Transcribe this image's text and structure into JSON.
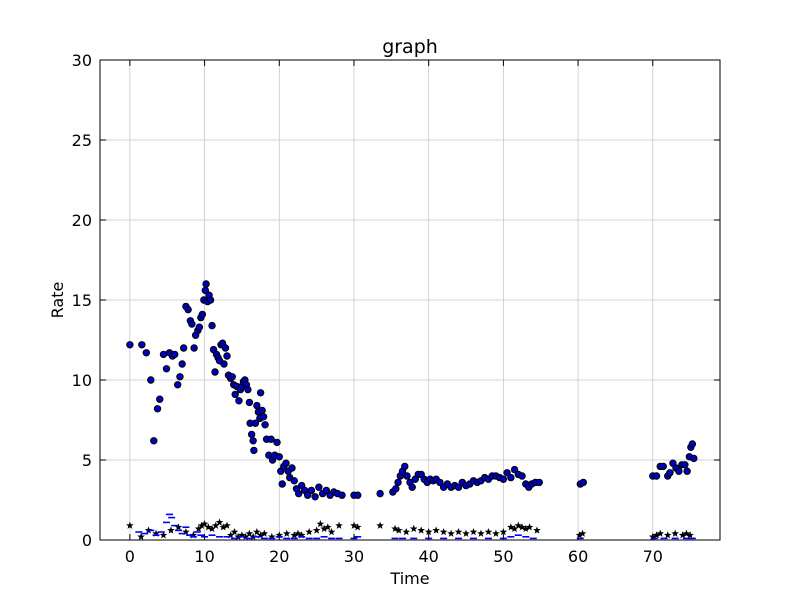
{
  "chart_data": {
    "type": "scatter",
    "title": "graph",
    "xlabel": "Time",
    "ylabel": "Rate",
    "xlim": [
      -4,
      79
    ],
    "ylim": [
      0,
      30
    ],
    "xticks": [
      0,
      10,
      20,
      30,
      40,
      50,
      60,
      70
    ],
    "yticks": [
      0,
      5,
      10,
      15,
      20,
      25,
      30
    ],
    "grid": true,
    "colors": {
      "circle_fill": "#0000bf",
      "circle_stroke": "#000000",
      "star": "#000000",
      "dash": "#0000ff",
      "grid": "#c8c8c8"
    },
    "series": [
      {
        "marker": "circle",
        "points": [
          [
            0,
            12.2
          ],
          [
            1.6,
            12.2
          ],
          [
            2.2,
            11.7
          ],
          [
            2.8,
            10
          ],
          [
            3.2,
            6.2
          ],
          [
            3.7,
            8.2
          ],
          [
            4,
            8.8
          ],
          [
            4.5,
            11.6
          ],
          [
            4.9,
            10.7
          ],
          [
            5.3,
            11.7
          ],
          [
            5.7,
            11.5
          ],
          [
            6,
            11.6
          ],
          [
            6.4,
            9.7
          ],
          [
            6.7,
            10.2
          ],
          [
            7,
            11
          ],
          [
            7.2,
            12
          ],
          [
            7.5,
            14.6
          ],
          [
            7.8,
            14.4
          ],
          [
            8.1,
            13.7
          ],
          [
            8.3,
            13.5
          ],
          [
            8.6,
            12
          ],
          [
            8.8,
            12.8
          ],
          [
            9.1,
            13.1
          ],
          [
            9.3,
            13.3
          ],
          [
            9.5,
            13.9
          ],
          [
            9.7,
            14.1
          ],
          [
            9.9,
            15
          ],
          [
            10.1,
            15.6
          ],
          [
            10.2,
            16
          ],
          [
            10.4,
            14.9
          ],
          [
            10.6,
            15.3
          ],
          [
            10.8,
            15
          ],
          [
            11,
            13.4
          ],
          [
            11.2,
            11.9
          ],
          [
            11.4,
            10.5
          ],
          [
            11.6,
            11.6
          ],
          [
            11.8,
            11.4
          ],
          [
            12,
            11.2
          ],
          [
            12.2,
            12.2
          ],
          [
            12.4,
            12.3
          ],
          [
            12.6,
            11
          ],
          [
            12.8,
            12
          ],
          [
            13,
            11.5
          ],
          [
            13.2,
            10.3
          ],
          [
            13.5,
            10.1
          ],
          [
            13.7,
            10.2
          ],
          [
            13.9,
            9.7
          ],
          [
            14.1,
            9.1
          ],
          [
            14.3,
            9.6
          ],
          [
            14.6,
            8.7
          ],
          [
            14.8,
            9.4
          ],
          [
            15,
            9.6
          ],
          [
            15.2,
            9.9
          ],
          [
            15.4,
            10
          ],
          [
            15.6,
            9.7
          ],
          [
            15.8,
            9.4
          ],
          [
            16,
            8.6
          ],
          [
            16.1,
            7.3
          ],
          [
            16.3,
            6.6
          ],
          [
            16.5,
            6.2
          ],
          [
            16.6,
            5.6
          ],
          [
            16.8,
            7.3
          ],
          [
            17,
            8.4
          ],
          [
            17.2,
            8
          ],
          [
            17.4,
            7.6
          ],
          [
            17.5,
            9.2
          ],
          [
            17.7,
            8.1
          ],
          [
            17.9,
            7.7
          ],
          [
            18.1,
            7.2
          ],
          [
            18.3,
            6.3
          ],
          [
            18.6,
            5.3
          ],
          [
            18.9,
            6.3
          ],
          [
            19.1,
            5
          ],
          [
            19.4,
            5.3
          ],
          [
            19.7,
            6.1
          ],
          [
            20,
            5.2
          ],
          [
            20.2,
            4.3
          ],
          [
            20.4,
            3.5
          ],
          [
            20.6,
            4.6
          ],
          [
            20.9,
            4.8
          ],
          [
            21.2,
            4.3
          ],
          [
            21.4,
            3.9
          ],
          [
            21.7,
            4.5
          ],
          [
            22,
            3.7
          ],
          [
            22.3,
            3.2
          ],
          [
            22.6,
            2.9
          ],
          [
            23,
            3.4
          ],
          [
            23.4,
            3.1
          ],
          [
            23.8,
            2.8
          ],
          [
            24.3,
            3.1
          ],
          [
            24.8,
            2.7
          ],
          [
            25.3,
            3.3
          ],
          [
            25.8,
            2.9
          ],
          [
            26.3,
            3.1
          ],
          [
            26.8,
            2.8
          ],
          [
            27.3,
            3
          ],
          [
            27.8,
            2.9
          ],
          [
            28.4,
            2.8
          ],
          [
            30,
            2.8
          ],
          [
            30.5,
            2.8
          ],
          [
            33.5,
            2.9
          ],
          [
            35.2,
            3
          ],
          [
            35.6,
            3.2
          ],
          [
            35.9,
            3.6
          ],
          [
            36.2,
            4
          ],
          [
            36.5,
            4.3
          ],
          [
            36.8,
            4.6
          ],
          [
            37.1,
            4
          ],
          [
            37.5,
            3.6
          ],
          [
            37.8,
            3.3
          ],
          [
            38.2,
            3.8
          ],
          [
            38.6,
            4.1
          ],
          [
            39,
            4.1
          ],
          [
            39.4,
            3.8
          ],
          [
            39.8,
            3.6
          ],
          [
            40.2,
            3.8
          ],
          [
            40.6,
            3.7
          ],
          [
            41,
            3.8
          ],
          [
            41.5,
            3.6
          ],
          [
            42,
            3.3
          ],
          [
            42.5,
            3.5
          ],
          [
            43,
            3.3
          ],
          [
            43.5,
            3.4
          ],
          [
            44,
            3.3
          ],
          [
            44.5,
            3.6
          ],
          [
            45,
            3.4
          ],
          [
            45.5,
            3.5
          ],
          [
            46,
            3.7
          ],
          [
            46.5,
            3.6
          ],
          [
            47,
            3.7
          ],
          [
            47.5,
            3.9
          ],
          [
            48,
            3.8
          ],
          [
            48.5,
            4
          ],
          [
            49,
            4
          ],
          [
            49.5,
            3.9
          ],
          [
            50,
            3.8
          ],
          [
            50.5,
            4.2
          ],
          [
            51,
            3.9
          ],
          [
            51.5,
            4.4
          ],
          [
            52,
            4.1
          ],
          [
            52.5,
            4
          ],
          [
            53,
            3.5
          ],
          [
            53.4,
            3.3
          ],
          [
            53.8,
            3.5
          ],
          [
            54.3,
            3.6
          ],
          [
            54.8,
            3.6
          ],
          [
            60.3,
            3.5
          ],
          [
            60.7,
            3.6
          ],
          [
            70,
            4
          ],
          [
            70.5,
            4
          ],
          [
            71,
            4.6
          ],
          [
            71.4,
            4.6
          ],
          [
            72,
            4
          ],
          [
            72.3,
            4.2
          ],
          [
            72.7,
            4.8
          ],
          [
            73.1,
            4.5
          ],
          [
            73.5,
            4.3
          ],
          [
            73.9,
            4.7
          ],
          [
            74.3,
            4.7
          ],
          [
            74.6,
            4.3
          ],
          [
            74.9,
            5.2
          ],
          [
            75.1,
            5.8
          ],
          [
            75.3,
            6
          ],
          [
            75.5,
            5.1
          ]
        ]
      },
      {
        "marker": "star",
        "points": [
          [
            0,
            0.9
          ],
          [
            1.5,
            0.2
          ],
          [
            2.5,
            0.6
          ],
          [
            3.5,
            0.4
          ],
          [
            4.5,
            0.3
          ],
          [
            5.5,
            0.6
          ],
          [
            6.5,
            0.8
          ],
          [
            7.5,
            0.5
          ],
          [
            8.5,
            0.3
          ],
          [
            9.2,
            0.7
          ],
          [
            9.6,
            0.9
          ],
          [
            10,
            1
          ],
          [
            10.5,
            0.8
          ],
          [
            11,
            0.7
          ],
          [
            11.5,
            0.9
          ],
          [
            12,
            1.1
          ],
          [
            12.5,
            0.8
          ],
          [
            13,
            0.9
          ],
          [
            13.5,
            0.3
          ],
          [
            14,
            0.5
          ],
          [
            14.5,
            0.2
          ],
          [
            15,
            0.3
          ],
          [
            15.5,
            0.2
          ],
          [
            16,
            0.4
          ],
          [
            16.5,
            0.2
          ],
          [
            17,
            0.5
          ],
          [
            17.5,
            0.3
          ],
          [
            18,
            0.4
          ],
          [
            19,
            0.2
          ],
          [
            20,
            0.3
          ],
          [
            21,
            0.4
          ],
          [
            22,
            0.3
          ],
          [
            22.5,
            0.4
          ],
          [
            23,
            0.3
          ],
          [
            24,
            0.5
          ],
          [
            25,
            0.6
          ],
          [
            25.5,
            1
          ],
          [
            26,
            0.7
          ],
          [
            26.5,
            0.8
          ],
          [
            27,
            0.5
          ],
          [
            28,
            0.9
          ],
          [
            30,
            0.9
          ],
          [
            30.5,
            0.8
          ],
          [
            33.5,
            0.9
          ],
          [
            35.5,
            0.7
          ],
          [
            36,
            0.6
          ],
          [
            37,
            0.5
          ],
          [
            38,
            0.7
          ],
          [
            39,
            0.6
          ],
          [
            40,
            0.5
          ],
          [
            41,
            0.6
          ],
          [
            42,
            0.5
          ],
          [
            43,
            0.4
          ],
          [
            44,
            0.5
          ],
          [
            45,
            0.4
          ],
          [
            46,
            0.5
          ],
          [
            47,
            0.4
          ],
          [
            48,
            0.5
          ],
          [
            49,
            0.4
          ],
          [
            50,
            0.5
          ],
          [
            51,
            0.8
          ],
          [
            51.5,
            0.7
          ],
          [
            52,
            0.9
          ],
          [
            52.5,
            0.8
          ],
          [
            53,
            0.7
          ],
          [
            53.5,
            0.8
          ],
          [
            54.5,
            0.6
          ],
          [
            60.2,
            0.3
          ],
          [
            60.6,
            0.4
          ],
          [
            70,
            0.2
          ],
          [
            70.5,
            0.3
          ],
          [
            71,
            0.4
          ],
          [
            72,
            0.3
          ],
          [
            73,
            0.4
          ],
          [
            74,
            0.3
          ],
          [
            74.5,
            0.4
          ],
          [
            75,
            0.3
          ]
        ]
      },
      {
        "marker": "dash",
        "points": [
          [
            1.2,
            0.5
          ],
          [
            2,
            0.4
          ],
          [
            2.8,
            0.6
          ],
          [
            3.5,
            0.3
          ],
          [
            4.2,
            0.5
          ],
          [
            4.9,
            1.1
          ],
          [
            5.3,
            1.6
          ],
          [
            5.6,
            1.4
          ],
          [
            6,
            0.9
          ],
          [
            6.5,
            0.6
          ],
          [
            7,
            0.4
          ],
          [
            7.5,
            0.8
          ],
          [
            8,
            0.3
          ],
          [
            8.5,
            0.2
          ],
          [
            9,
            0.5
          ],
          [
            9.5,
            0.3
          ],
          [
            10,
            0.2
          ],
          [
            11,
            0.3
          ],
          [
            12,
            0.2
          ],
          [
            13,
            0.2
          ],
          [
            14,
            0.1
          ],
          [
            15,
            0.2
          ],
          [
            16,
            0.1
          ],
          [
            17,
            0.2
          ],
          [
            18,
            0.1
          ],
          [
            19,
            0.1
          ],
          [
            20,
            0.2
          ],
          [
            21,
            0.1
          ],
          [
            22,
            0.1
          ],
          [
            23,
            0.2
          ],
          [
            24,
            0.1
          ],
          [
            25,
            0.1
          ],
          [
            26,
            0.2
          ],
          [
            27,
            0.1
          ],
          [
            28,
            0.1
          ],
          [
            30,
            0.1
          ],
          [
            30.5,
            0.2
          ],
          [
            35.5,
            0.1
          ],
          [
            36.5,
            0.1
          ],
          [
            38,
            0.1
          ],
          [
            40,
            0.1
          ],
          [
            42,
            0.1
          ],
          [
            44,
            0.1
          ],
          [
            46,
            0.1
          ],
          [
            48,
            0.1
          ],
          [
            50,
            0.1
          ],
          [
            51,
            0.2
          ],
          [
            52,
            0.3
          ],
          [
            53,
            0.2
          ],
          [
            54,
            0.1
          ],
          [
            60.3,
            0.1
          ],
          [
            70.2,
            0.1
          ],
          [
            71.5,
            0.1
          ],
          [
            73,
            0.1
          ],
          [
            74.5,
            0.1
          ],
          [
            75.3,
            0.1
          ]
        ]
      }
    ]
  }
}
